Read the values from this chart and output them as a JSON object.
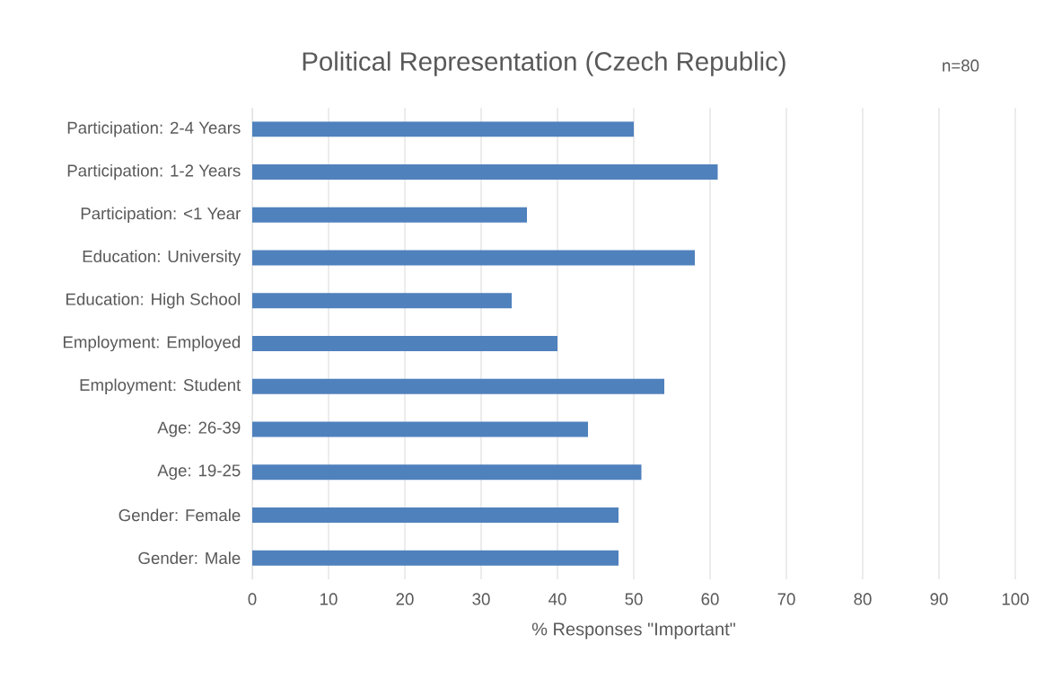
{
  "chart_data": {
    "type": "bar",
    "orientation": "horizontal",
    "title": "Political Representation  (Czech Republic)",
    "xlabel": "% Responses \"Important\"",
    "annotations": [
      "n=80"
    ],
    "categories": [
      "Participation: 2-4 Years",
      "Participation: 1-2 Years",
      "Participation: <1 Year",
      "Education: University",
      "Education: High School",
      "Employment: Employed",
      "Employment: Student",
      "Age: 26-39",
      "Age: 19-25",
      "Gender: Female",
      "Gender: Male"
    ],
    "values": [
      50,
      61,
      36,
      58,
      34,
      40,
      54,
      44,
      51,
      48,
      48
    ],
    "color": "#4f81bd",
    "xlim": [
      0,
      100
    ],
    "xticks": [
      0,
      10,
      20,
      30,
      40,
      50,
      60,
      70,
      80,
      90,
      100
    ],
    "grid": "x"
  }
}
